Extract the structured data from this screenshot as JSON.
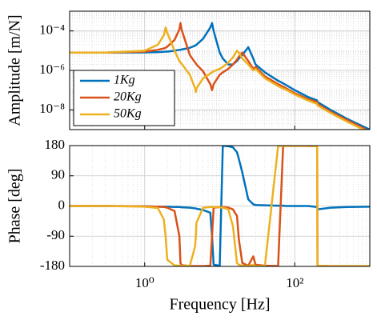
{
  "chart_data": [
    {
      "type": "line",
      "xlog": true,
      "ylog": true,
      "ylabel": "Amplitude [m/N]",
      "grid": true,
      "legend": "lower left",
      "xlim": [
        0.1,
        1000
      ],
      "ylim": [
        1e-09,
        0.001
      ],
      "yticks": [
        {
          "value": 1e-08,
          "label": "10⁻⁸"
        },
        {
          "value": 1e-06,
          "label": "10⁻⁶"
        },
        {
          "value": 0.0001,
          "label": "10⁻⁴"
        }
      ],
      "x": [
        0.1,
        0.3,
        1,
        1.5,
        1.8,
        1.9,
        2.0,
        2.5,
        2.9,
        3.0,
        3.1,
        4,
        4.7,
        4.8,
        4.9,
        6,
        7.5,
        7.9,
        8.3,
        10,
        11,
        13,
        15,
        17,
        18,
        20,
        24,
        28,
        30,
        40,
        60,
        70,
        75,
        100,
        150,
        199,
        201,
        300,
        500,
        1000
      ],
      "series": [
        {
          "name": "1Kg",
          "color": "#0072BD",
          "values": [
            8e-06,
            8e-06,
            8.2e-06,
            8.5e-06,
            8.8e-06,
            9e-06,
            9e-06,
            1e-05,
            1.1e-05,
            1.1e-05,
            1.15e-05,
            1.4e-05,
            1.8e-05,
            1.9e-05,
            2e-05,
            4e-05,
            0.00015,
            0.00025,
            0.0001,
            8e-06,
            4e-06,
            2e-06,
            2e-06,
            3e-06,
            4e-06,
            6e-06,
            1.5e-05,
            4e-06,
            2e-06,
            8e-07,
            3e-07,
            2.2e-07,
            1.9e-07,
            1e-07,
            4.5e-08,
            3e-08,
            2.5e-08,
            1e-08,
            3.5e-09,
            1e-09
          ]
        },
        {
          "name": "20Kg",
          "color": "#D95319",
          "values": [
            8e-06,
            8e-06,
            9e-06,
            1.1e-05,
            1.3e-05,
            1.4e-05,
            1.6e-05,
            3.5e-05,
            0.00012,
            0.00025,
            0.00012,
            6e-06,
            2.5e-06,
            2.3e-06,
            2e-06,
            9e-07,
            2e-07,
            1e-07,
            2e-07,
            6e-07,
            8e-07,
            1.2e-06,
            2e-06,
            3.5e-06,
            5e-06,
            8e-06,
            3e-06,
            1.2e-06,
            1.5e-06,
            5e-07,
            2e-07,
            1.5e-07,
            1.3e-07,
            7e-08,
            3.5e-08,
            2.5e-08,
            2e-08,
            8e-09,
            3e-09,
            8e-10
          ]
        },
        {
          "name": "50Kg",
          "color": "#EDB120",
          "values": [
            8e-06,
            8e-06,
            1e-05,
            2e-05,
            6e-05,
            0.00015,
            8e-05,
            1e-05,
            3e-06,
            2.5e-06,
            2.2e-06,
            6e-07,
            1.2e-07,
            8e-08,
            1.2e-07,
            4e-07,
            7e-07,
            8e-07,
            9e-07,
            1.2e-06,
            1.5e-06,
            2.5e-06,
            4.5e-06,
            1e-05,
            8e-06,
            4e-06,
            2e-06,
            1e-06,
            1.2e-06,
            4e-07,
            1.6e-07,
            1.2e-07,
            1.1e-07,
            6e-08,
            3e-08,
            2e-08,
            1.7e-08,
            7e-09,
            2.5e-09,
            7e-10
          ]
        }
      ]
    },
    {
      "type": "line",
      "xlog": true,
      "ylog": false,
      "ylabel": "Phase [deg]",
      "xlabel": "Frequency [Hz]",
      "grid": true,
      "xlim": [
        0.1,
        1000
      ],
      "ylim": [
        -180,
        180
      ],
      "xticks": [
        {
          "value": 1,
          "label": "10⁰"
        },
        {
          "value": 100,
          "label": "10²"
        }
      ],
      "yticks": [
        -180,
        -90,
        0,
        90,
        180
      ],
      "x": [
        0.1,
        0.3,
        1,
        1.5,
        1.8,
        1.9,
        2.0,
        2.5,
        2.9,
        3.0,
        3.1,
        4,
        4.7,
        4.8,
        4.9,
        6,
        7.5,
        7.9,
        8.3,
        10,
        11,
        13,
        15,
        17,
        18,
        20,
        24,
        28,
        30,
        40,
        60,
        70,
        75,
        100,
        150,
        199,
        201,
        300,
        500,
        1000
      ],
      "series": [
        {
          "name": "1Kg",
          "color": "#0072BD",
          "values": [
            0,
            0,
            -1,
            -2,
            -2,
            -2,
            -2,
            -3,
            -3,
            -3,
            -4,
            -5,
            -7,
            -7,
            -8,
            -12,
            -20,
            -90,
            -175,
            -178,
            180,
            178,
            175,
            160,
            140,
            100,
            20,
            5,
            3,
            2,
            1,
            1,
            0,
            0,
            0,
            -3,
            -10,
            -5,
            -3,
            -2
          ]
        },
        {
          "name": "20Kg",
          "color": "#D95319",
          "values": [
            0,
            0,
            -1,
            -2,
            -3,
            -4,
            -5,
            -15,
            -90,
            -170,
            -176,
            -179,
            -179,
            -179,
            -179,
            -179,
            -178,
            -90,
            -5,
            -3,
            -3,
            -5,
            -10,
            -30,
            -100,
            -170,
            -178,
            -150,
            -175,
            -178,
            -179,
            179,
            179,
            179,
            179,
            178,
            -178,
            -179,
            -179,
            -179
          ]
        },
        {
          "name": "50Kg",
          "color": "#EDB120",
          "values": [
            0,
            0,
            -2,
            -6,
            -40,
            -90,
            -160,
            -177,
            -178,
            -178,
            -178,
            -178,
            -120,
            -90,
            -50,
            -5,
            -3,
            -3,
            -3,
            -4,
            -5,
            -10,
            -60,
            -170,
            -175,
            -178,
            -179,
            -175,
            -179,
            -179,
            179,
            179,
            179,
            179,
            179,
            178,
            -178,
            -179,
            -179,
            -179
          ]
        }
      ]
    }
  ]
}
